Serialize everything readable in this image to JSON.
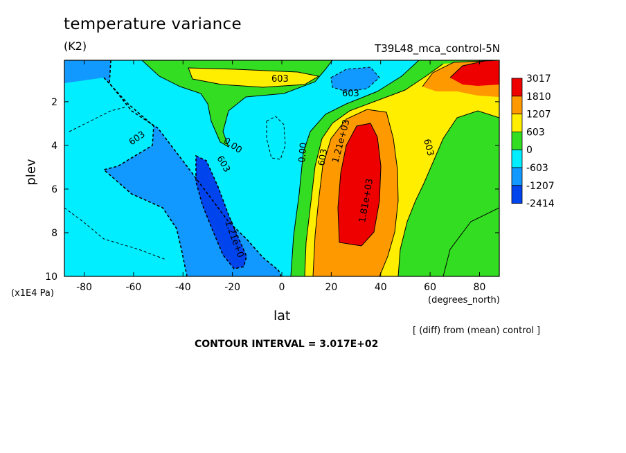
{
  "chart_data": {
    "type": "contour",
    "title": "temperature variance",
    "units": "(K2)",
    "run_label": "T39L48_mca_control-5N",
    "xlabel": "lat",
    "ylabel": "plev",
    "x_units": "(degrees_north)",
    "y_units": "(x1E4 Pa)",
    "x_ticks": [
      "-80",
      "-60",
      "-40",
      "-20",
      "0",
      "20",
      "40",
      "60",
      "80"
    ],
    "x_tick_values": [
      -80,
      -60,
      -40,
      -20,
      0,
      20,
      40,
      60,
      80
    ],
    "y_ticks": [
      "2",
      "4",
      "6",
      "8",
      "10"
    ],
    "y_tick_values": [
      2,
      4,
      6,
      8,
      10
    ],
    "xlim": [
      -88,
      88
    ],
    "ylim": [
      0.1,
      10
    ],
    "y_inverted": true,
    "legend": {
      "placement": "right",
      "labels": [
        "3017",
        "1810",
        "1207",
        "603",
        "0",
        "-603",
        "-1207",
        "-2414"
      ],
      "colors": [
        "#ee0000",
        "#ff9900",
        "#ffee00",
        "#33dd22",
        "#00eeff",
        "#1199ff",
        "#0044ee"
      ]
    },
    "contour_labels": [
      "603",
      "603",
      "603",
      "0.00",
      "0.00",
      "603",
      "1.21e+03",
      "1.81e+03",
      "603",
      "603",
      "1.21e+0"
    ],
    "footer_diff": "[ (diff) from (mean) control ]",
    "contour_interval": "CONTOUR INTERVAL = 3.017E+02"
  }
}
